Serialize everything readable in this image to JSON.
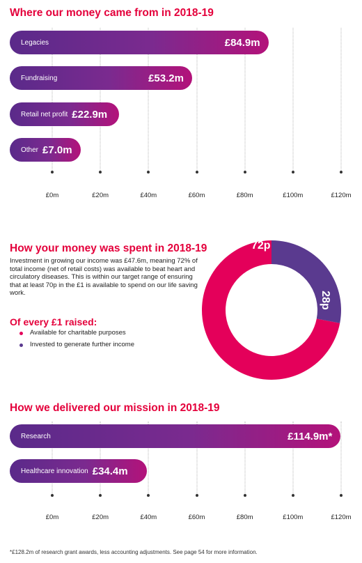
{
  "income": {
    "title": "Where our money came from in 2018-19"
  },
  "spent": {
    "title": "How your money was spent in 2018-19",
    "body": "Investment in growing our income was £47.6m, meaning 72% of total income (net of retail costs) was available to beat heart and circulatory diseases. This is within our target range of ensuring that at least 70p in the £1 is available to spend on our life saving work.",
    "every_title": "Of every £1 raised:",
    "legend": [
      {
        "label": "Available for charitable purposes",
        "color": "#e4005a"
      },
      {
        "label": "Invested to generate further income",
        "color": "#5a3a8f"
      }
    ]
  },
  "mission": {
    "title": "How we delivered our mission in 2018-19"
  },
  "footnote": "*£128.2m of research grant awards, less accounting adjustments. See page 54 for more information.",
  "colors": {
    "accent_red": "#e4003b",
    "bar_start": "#5a2a8a",
    "bar_end": "#b3127a",
    "donut_pink": "#e4005a",
    "donut_purple": "#5a3a8f"
  },
  "chart_data": [
    {
      "type": "bar",
      "orientation": "horizontal",
      "title": "Where our money came from in 2018-19",
      "categories": [
        "Legacies",
        "Fundraising",
        "Retail net profit",
        "Other"
      ],
      "values": [
        84.9,
        53.2,
        22.9,
        7.0
      ],
      "value_labels": [
        "£84.9m",
        "£53.2m",
        "£22.9m",
        "£7.0m"
      ],
      "tick_labels": [
        "£0m",
        "£20m",
        "£40m",
        "£60m",
        "£80m",
        "£100m",
        "£120m"
      ],
      "xlim": [
        0,
        120
      ],
      "grid": true
    },
    {
      "type": "pie",
      "title": "How your money was spent in 2018-19",
      "categories": [
        "Available for charitable purposes",
        "Invested to generate further income"
      ],
      "values": [
        72,
        28
      ],
      "value_labels": [
        "72p",
        "28p"
      ]
    },
    {
      "type": "bar",
      "orientation": "horizontal",
      "title": "How we delivered our mission in 2018-19",
      "categories": [
        "Research",
        "Healthcare innovation"
      ],
      "values": [
        114.9,
        34.4
      ],
      "value_labels": [
        "£114.9m*",
        "£34.4m"
      ],
      "tick_labels": [
        "£0m",
        "£20m",
        "£40m",
        "£60m",
        "£80m",
        "£100m",
        "£120m"
      ],
      "xlim": [
        0,
        120
      ],
      "grid": true
    }
  ]
}
